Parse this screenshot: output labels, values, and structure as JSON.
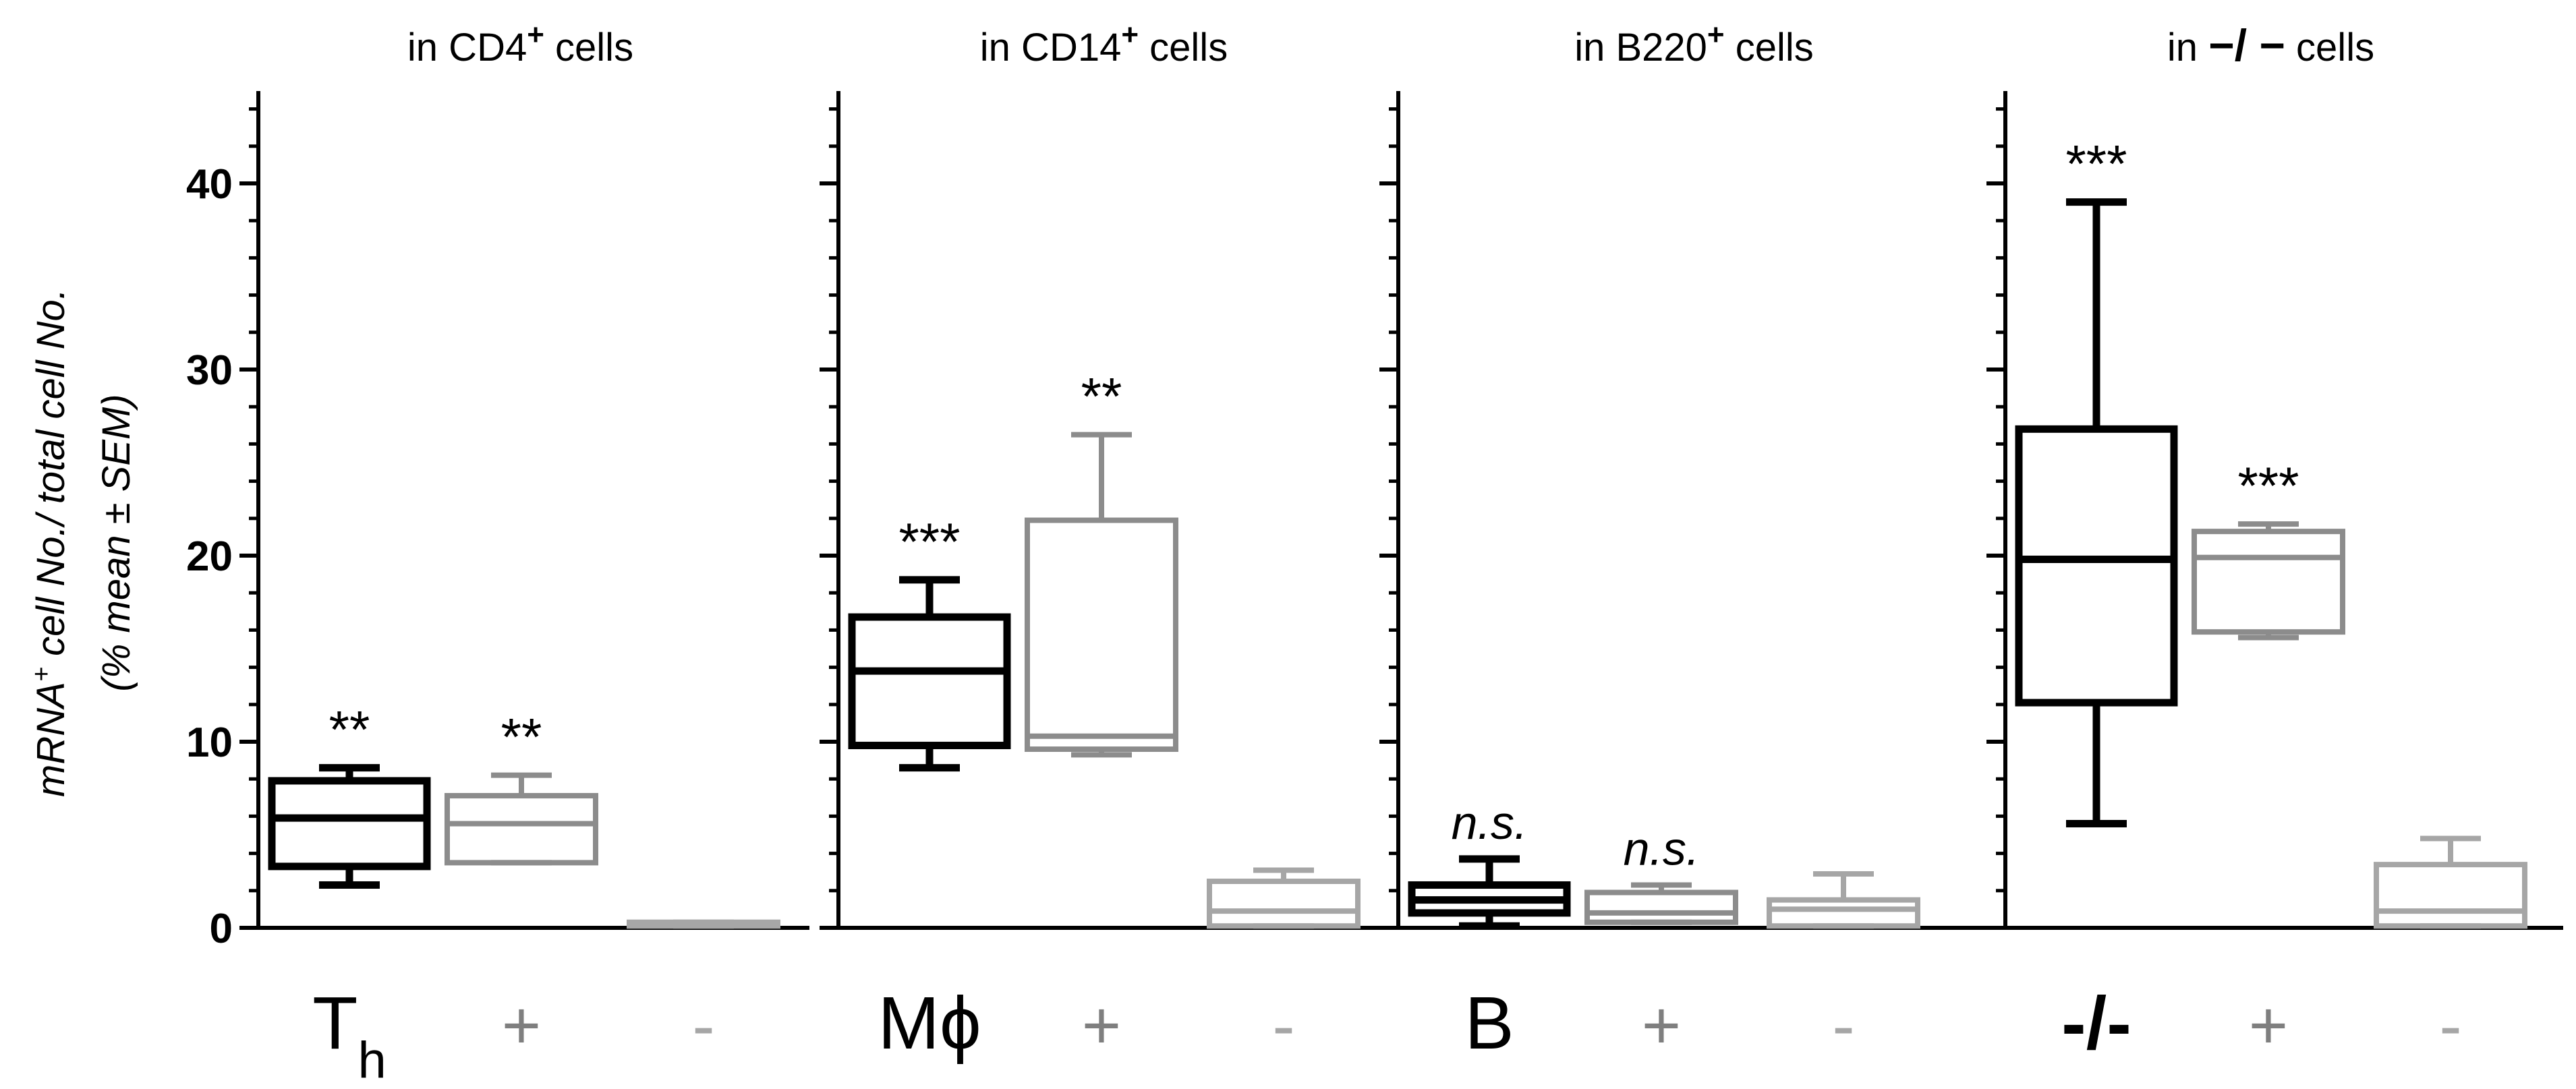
{
  "chart_data": {
    "type": "box",
    "ylabel_line1": "mRNA",
    "ylabel_sup": "+",
    "ylabel_line1_rest": " cell No./ total cell No.",
    "ylabel_line2": "(% mean ± SEM)",
    "ylim": [
      0,
      45
    ],
    "yticks": [
      0,
      10,
      20,
      30,
      40
    ],
    "colors": {
      "black": "#000000",
      "dark_gray": "#7f7f7f",
      "light_gray": "#a6a6a6"
    },
    "panels": [
      {
        "title_pre": "in CD4",
        "title_sup": "+",
        "title_post": " cells",
        "boxes": [
          {
            "label": "T",
            "label_sub": "h",
            "label_color": "#000000",
            "color": "#000000",
            "min": 2.3,
            "q1": 3.3,
            "median": 5.9,
            "q3": 7.9,
            "max": 8.6,
            "annotation": "**",
            "annotation_style": "normal"
          },
          {
            "label": "+",
            "label_color": "#7f7f7f",
            "color": "#8c8c8c",
            "min": 3.5,
            "q1": 3.5,
            "median": 5.6,
            "q3": 7.1,
            "max": 8.2,
            "annotation": "**",
            "annotation_style": "normal"
          },
          {
            "label": "-",
            "label_color": "#a6a6a6",
            "color": "#a6a6a6",
            "min": 0.1,
            "q1": 0.1,
            "median": 0.2,
            "q3": 0.3,
            "max": 0.3,
            "annotation": "",
            "annotation_style": "normal"
          }
        ]
      },
      {
        "title_pre": "in CD14",
        "title_sup": "+",
        "title_post": " cells",
        "boxes": [
          {
            "label": "Mϕ",
            "label_color": "#000000",
            "color": "#000000",
            "min": 8.6,
            "q1": 9.8,
            "median": 13.8,
            "q3": 16.7,
            "max": 18.7,
            "annotation": "***",
            "annotation_style": "normal"
          },
          {
            "label": "+",
            "label_color": "#7f7f7f",
            "color": "#8c8c8c",
            "min": 9.3,
            "q1": 9.6,
            "median": 10.3,
            "q3": 21.9,
            "max": 26.5,
            "annotation": "**",
            "annotation_style": "normal"
          },
          {
            "label": "-",
            "label_color": "#a6a6a6",
            "color": "#a6a6a6",
            "min": 0.1,
            "q1": 0.1,
            "median": 0.9,
            "q3": 2.5,
            "max": 3.1,
            "annotation": "",
            "annotation_style": "normal"
          }
        ]
      },
      {
        "title_pre": "in B220",
        "title_sup": "+",
        "title_post": " cells",
        "boxes": [
          {
            "label": "B",
            "label_color": "#000000",
            "color": "#000000",
            "min": 0.1,
            "q1": 0.8,
            "median": 1.5,
            "q3": 2.3,
            "max": 3.7,
            "annotation": "n.s.",
            "annotation_style": "italic"
          },
          {
            "label": "+",
            "label_color": "#7f7f7f",
            "color": "#8c8c8c",
            "min": 0.3,
            "q1": 0.3,
            "median": 0.8,
            "q3": 1.9,
            "max": 2.3,
            "annotation": "n.s.",
            "annotation_style": "italic"
          },
          {
            "label": "-",
            "label_color": "#a6a6a6",
            "color": "#a6a6a6",
            "min": 0.1,
            "q1": 0.1,
            "median": 1.0,
            "q3": 1.5,
            "max": 2.9,
            "annotation": "",
            "annotation_style": "normal"
          }
        ]
      },
      {
        "title_pre": "in ",
        "title_mid": "−/ −",
        "title_post": " cells",
        "boxes": [
          {
            "label": "-/-",
            "label_color": "#000000",
            "color": "#000000",
            "min": 5.6,
            "q1": 12.1,
            "median": 19.8,
            "q3": 26.8,
            "max": 39.0,
            "annotation": "***",
            "annotation_style": "normal"
          },
          {
            "label": "+",
            "label_color": "#7f7f7f",
            "color": "#8c8c8c",
            "min": 15.6,
            "q1": 15.9,
            "median": 19.9,
            "q3": 21.3,
            "max": 21.7,
            "annotation": "***",
            "annotation_style": "normal"
          },
          {
            "label": "-",
            "label_color": "#a6a6a6",
            "color": "#a6a6a6",
            "min": 0.1,
            "q1": 0.1,
            "median": 0.9,
            "q3": 3.4,
            "max": 4.8,
            "annotation": "",
            "annotation_style": "normal"
          }
        ]
      }
    ]
  }
}
